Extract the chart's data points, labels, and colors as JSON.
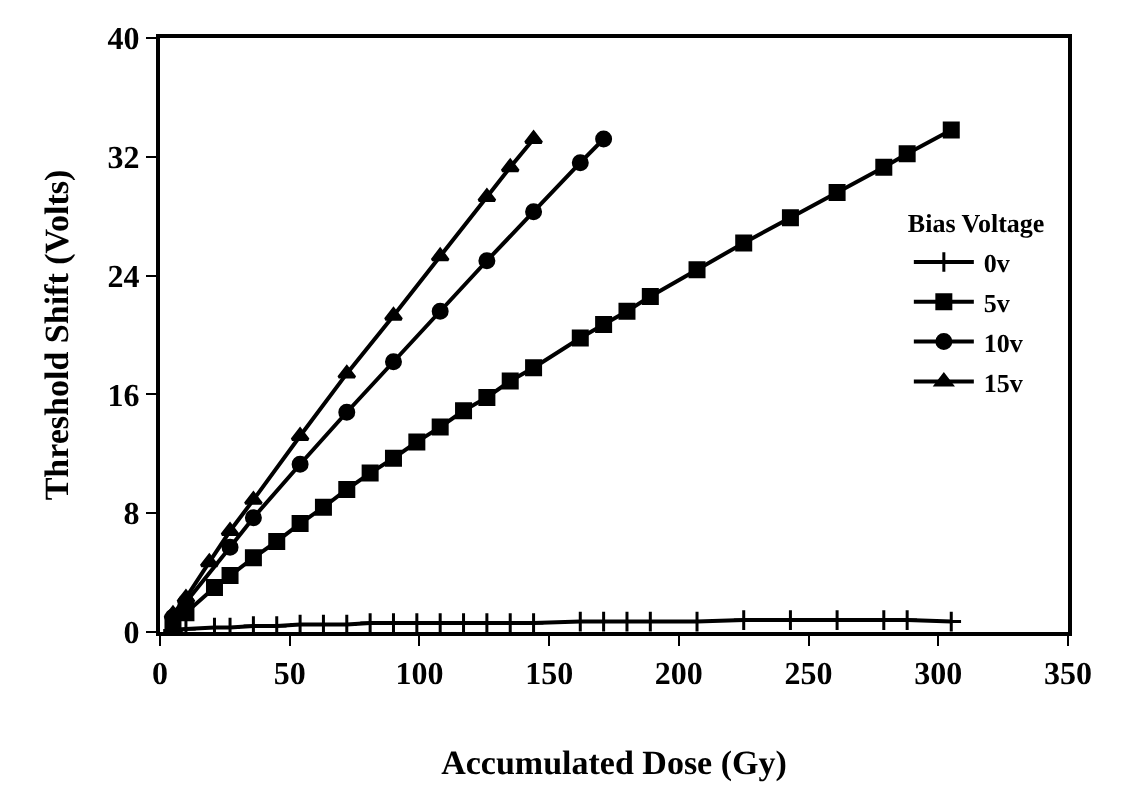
{
  "chart_data": {
    "type": "line",
    "xlabel": "Accumulated Dose (Gy)",
    "ylabel": "Threshold Shift (Volts)",
    "legend_title": "Bias Voltage",
    "legend": "right",
    "xlim": [
      0,
      350
    ],
    "xticks": [
      0,
      50,
      100,
      150,
      200,
      250,
      300,
      350
    ],
    "ylim": [
      0,
      40
    ],
    "yticks": [
      0,
      8,
      16,
      24,
      32,
      40
    ],
    "series": [
      {
        "name": "0v",
        "color": "#000000",
        "marker": "cross",
        "x": [
          5,
          10,
          21,
          27,
          36,
          45,
          54,
          63,
          72,
          81,
          90,
          99,
          108,
          117,
          126,
          135,
          144,
          162,
          171,
          180,
          189,
          207,
          225,
          243,
          261,
          279,
          288,
          305
        ],
        "values": [
          0.1,
          0.2,
          0.3,
          0.3,
          0.4,
          0.4,
          0.5,
          0.5,
          0.5,
          0.6,
          0.6,
          0.6,
          0.6,
          0.6,
          0.6,
          0.6,
          0.6,
          0.7,
          0.7,
          0.7,
          0.7,
          0.7,
          0.8,
          0.8,
          0.8,
          0.8,
          0.8,
          0.7
        ]
      },
      {
        "name": "5v",
        "color": "#000000",
        "marker": "square",
        "x": [
          5,
          10,
          21,
          27,
          36,
          45,
          54,
          63,
          72,
          81,
          90,
          99,
          108,
          117,
          126,
          135,
          144,
          162,
          171,
          180,
          189,
          207,
          225,
          243,
          261,
          279,
          288,
          305
        ],
        "values": [
          0.6,
          1.3,
          3.0,
          3.8,
          5.0,
          6.1,
          7.3,
          8.4,
          9.6,
          10.7,
          11.7,
          12.8,
          13.8,
          14.9,
          15.8,
          16.9,
          17.8,
          19.8,
          20.7,
          21.6,
          22.6,
          24.4,
          26.2,
          27.9,
          29.6,
          31.3,
          32.2,
          33.8
        ]
      },
      {
        "name": "10v",
        "color": "#000000",
        "marker": "circle",
        "x": [
          5,
          10,
          27,
          36,
          54,
          72,
          90,
          108,
          126,
          144,
          162,
          171
        ],
        "values": [
          1.0,
          2.0,
          5.7,
          7.7,
          11.3,
          14.8,
          18.2,
          21.6,
          25.0,
          28.3,
          31.6,
          33.2
        ]
      },
      {
        "name": "15v",
        "color": "#000000",
        "marker": "triangle",
        "x": [
          5,
          10,
          19,
          27,
          36,
          54,
          72,
          90,
          108,
          126,
          135,
          144
        ],
        "values": [
          1.2,
          2.3,
          4.7,
          6.8,
          8.9,
          13.2,
          17.4,
          21.3,
          25.3,
          29.3,
          31.3,
          33.2
        ]
      }
    ]
  }
}
